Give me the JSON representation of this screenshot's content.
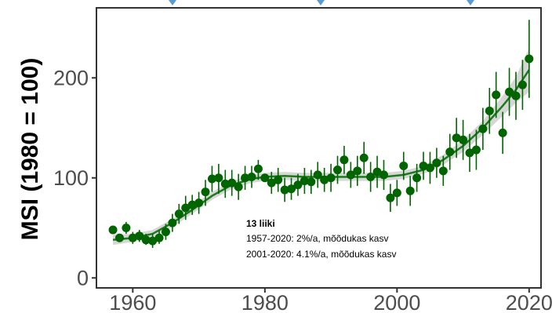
{
  "chart_data": {
    "type": "scatter",
    "ylabel": "MSI (1980 = 100)",
    "xlabel": "",
    "xlim": [
      1954.5,
      2021.8
    ],
    "ylim": [
      -10,
      270
    ],
    "x_ticks": [
      1960,
      1980,
      2000,
      2020
    ],
    "y_ticks": [
      0,
      100,
      200
    ],
    "grid": false,
    "colors": {
      "points": "#006400",
      "trend": "#1b7a1b",
      "band": "#c8c8c8",
      "axis": "#333333",
      "markers": "#5b9bd5"
    },
    "annotation": {
      "title": "13 liiki",
      "lines": [
        "1957-2020: 2%/a, mõõdukas kasv",
        "2001-2020: 4.1%/a, mõõdukas kasv"
      ]
    },
    "series": [
      {
        "points": [
          {
            "x": 1957,
            "y": 48,
            "lo": 48,
            "hi": 48
          },
          {
            "x": 1958,
            "y": 40,
            "lo": 36,
            "hi": 44
          },
          {
            "x": 1959,
            "y": 50,
            "lo": 44,
            "hi": 56
          },
          {
            "x": 1960,
            "y": 40,
            "lo": 34,
            "hi": 46
          },
          {
            "x": 1961,
            "y": 42,
            "lo": 36,
            "hi": 48
          },
          {
            "x": 1962,
            "y": 38,
            "lo": 33,
            "hi": 44
          },
          {
            "x": 1963,
            "y": 37,
            "lo": 30,
            "hi": 44
          },
          {
            "x": 1964,
            "y": 40,
            "lo": 34,
            "hi": 47
          },
          {
            "x": 1965,
            "y": 46,
            "lo": 38,
            "hi": 54
          },
          {
            "x": 1966,
            "y": 55,
            "lo": 46,
            "hi": 64
          },
          {
            "x": 1967,
            "y": 64,
            "lo": 54,
            "hi": 74
          },
          {
            "x": 1968,
            "y": 70,
            "lo": 58,
            "hi": 82
          },
          {
            "x": 1969,
            "y": 73,
            "lo": 63,
            "hi": 83
          },
          {
            "x": 1970,
            "y": 75,
            "lo": 64,
            "hi": 86
          },
          {
            "x": 1971,
            "y": 86,
            "lo": 72,
            "hi": 98
          },
          {
            "x": 1972,
            "y": 99,
            "lo": 86,
            "hi": 112
          },
          {
            "x": 1973,
            "y": 100,
            "lo": 84,
            "hi": 114
          },
          {
            "x": 1974,
            "y": 94,
            "lo": 80,
            "hi": 108
          },
          {
            "x": 1975,
            "y": 95,
            "lo": 82,
            "hi": 108
          },
          {
            "x": 1976,
            "y": 91,
            "lo": 78,
            "hi": 104
          },
          {
            "x": 1977,
            "y": 100,
            "lo": 88,
            "hi": 112
          },
          {
            "x": 1978,
            "y": 101,
            "lo": 90,
            "hi": 112
          },
          {
            "x": 1979,
            "y": 109,
            "lo": 98,
            "hi": 118
          },
          {
            "x": 1980,
            "y": 100,
            "lo": 100,
            "hi": 100
          },
          {
            "x": 1981,
            "y": 95,
            "lo": 84,
            "hi": 106
          },
          {
            "x": 1982,
            "y": 98,
            "lo": 86,
            "hi": 110
          },
          {
            "x": 1983,
            "y": 88,
            "lo": 76,
            "hi": 100
          },
          {
            "x": 1984,
            "y": 89,
            "lo": 78,
            "hi": 100
          },
          {
            "x": 1985,
            "y": 93,
            "lo": 82,
            "hi": 104
          },
          {
            "x": 1986,
            "y": 97,
            "lo": 84,
            "hi": 110
          },
          {
            "x": 1987,
            "y": 96,
            "lo": 84,
            "hi": 108
          },
          {
            "x": 1988,
            "y": 103,
            "lo": 90,
            "hi": 116
          },
          {
            "x": 1989,
            "y": 98,
            "lo": 86,
            "hi": 110
          },
          {
            "x": 1990,
            "y": 100,
            "lo": 86,
            "hi": 114
          },
          {
            "x": 1991,
            "y": 108,
            "lo": 94,
            "hi": 122
          },
          {
            "x": 1992,
            "y": 118,
            "lo": 104,
            "hi": 132
          },
          {
            "x": 1993,
            "y": 103,
            "lo": 90,
            "hi": 116
          },
          {
            "x": 1994,
            "y": 107,
            "lo": 92,
            "hi": 122
          },
          {
            "x": 1995,
            "y": 120,
            "lo": 104,
            "hi": 136
          },
          {
            "x": 1996,
            "y": 101,
            "lo": 86,
            "hi": 116
          },
          {
            "x": 1997,
            "y": 106,
            "lo": 90,
            "hi": 122
          },
          {
            "x": 1998,
            "y": 103,
            "lo": 88,
            "hi": 118
          },
          {
            "x": 1999,
            "y": 80,
            "lo": 66,
            "hi": 94
          },
          {
            "x": 2000,
            "y": 85,
            "lo": 72,
            "hi": 98
          },
          {
            "x": 2001,
            "y": 112,
            "lo": 98,
            "hi": 126
          },
          {
            "x": 2002,
            "y": 87,
            "lo": 72,
            "hi": 102
          },
          {
            "x": 2003,
            "y": 100,
            "lo": 86,
            "hi": 114
          },
          {
            "x": 2004,
            "y": 112,
            "lo": 98,
            "hi": 126
          },
          {
            "x": 2005,
            "y": 110,
            "lo": 94,
            "hi": 126
          },
          {
            "x": 2006,
            "y": 115,
            "lo": 100,
            "hi": 130
          },
          {
            "x": 2007,
            "y": 107,
            "lo": 92,
            "hi": 122
          },
          {
            "x": 2008,
            "y": 126,
            "lo": 108,
            "hi": 144
          },
          {
            "x": 2009,
            "y": 140,
            "lo": 120,
            "hi": 160
          },
          {
            "x": 2010,
            "y": 138,
            "lo": 118,
            "hi": 158
          },
          {
            "x": 2011,
            "y": 125,
            "lo": 106,
            "hi": 144
          },
          {
            "x": 2012,
            "y": 128,
            "lo": 108,
            "hi": 148
          },
          {
            "x": 2013,
            "y": 149,
            "lo": 128,
            "hi": 170
          },
          {
            "x": 2014,
            "y": 167,
            "lo": 144,
            "hi": 190
          },
          {
            "x": 2015,
            "y": 183,
            "lo": 160,
            "hi": 206
          },
          {
            "x": 2016,
            "y": 145,
            "lo": 124,
            "hi": 166
          },
          {
            "x": 2017,
            "y": 186,
            "lo": 162,
            "hi": 210
          },
          {
            "x": 2018,
            "y": 182,
            "lo": 158,
            "hi": 206
          },
          {
            "x": 2019,
            "y": 193,
            "lo": 168,
            "hi": 218
          },
          {
            "x": 2020,
            "y": 219,
            "lo": 180,
            "hi": 258
          }
        ]
      }
    ],
    "trend": [
      {
        "x": 1957,
        "y": 38,
        "lo": 33,
        "hi": 43
      },
      {
        "x": 1960,
        "y": 40,
        "lo": 36,
        "hi": 44
      },
      {
        "x": 1963,
        "y": 44,
        "lo": 40,
        "hi": 48
      },
      {
        "x": 1966,
        "y": 55,
        "lo": 51,
        "hi": 59
      },
      {
        "x": 1969,
        "y": 68,
        "lo": 64,
        "hi": 72
      },
      {
        "x": 1972,
        "y": 82,
        "lo": 78,
        "hi": 86
      },
      {
        "x": 1975,
        "y": 93,
        "lo": 89,
        "hi": 97
      },
      {
        "x": 1978,
        "y": 99,
        "lo": 95,
        "hi": 103
      },
      {
        "x": 1980,
        "y": 101,
        "lo": 97,
        "hi": 105
      },
      {
        "x": 1983,
        "y": 102,
        "lo": 98,
        "hi": 106
      },
      {
        "x": 1986,
        "y": 101,
        "lo": 97,
        "hi": 105
      },
      {
        "x": 1989,
        "y": 101,
        "lo": 97,
        "hi": 105
      },
      {
        "x": 1992,
        "y": 101,
        "lo": 97,
        "hi": 105
      },
      {
        "x": 1995,
        "y": 101,
        "lo": 97,
        "hi": 105
      },
      {
        "x": 1998,
        "y": 101,
        "lo": 97,
        "hi": 105
      },
      {
        "x": 2001,
        "y": 103,
        "lo": 99,
        "hi": 107
      },
      {
        "x": 2004,
        "y": 108,
        "lo": 104,
        "hi": 112
      },
      {
        "x": 2007,
        "y": 118,
        "lo": 113,
        "hi": 123
      },
      {
        "x": 2010,
        "y": 132,
        "lo": 126,
        "hi": 138
      },
      {
        "x": 2013,
        "y": 150,
        "lo": 143,
        "hi": 157
      },
      {
        "x": 2016,
        "y": 172,
        "lo": 162,
        "hi": 182
      },
      {
        "x": 2018,
        "y": 188,
        "lo": 175,
        "hi": 201
      },
      {
        "x": 2020,
        "y": 208,
        "lo": 186,
        "hi": 230
      }
    ]
  }
}
